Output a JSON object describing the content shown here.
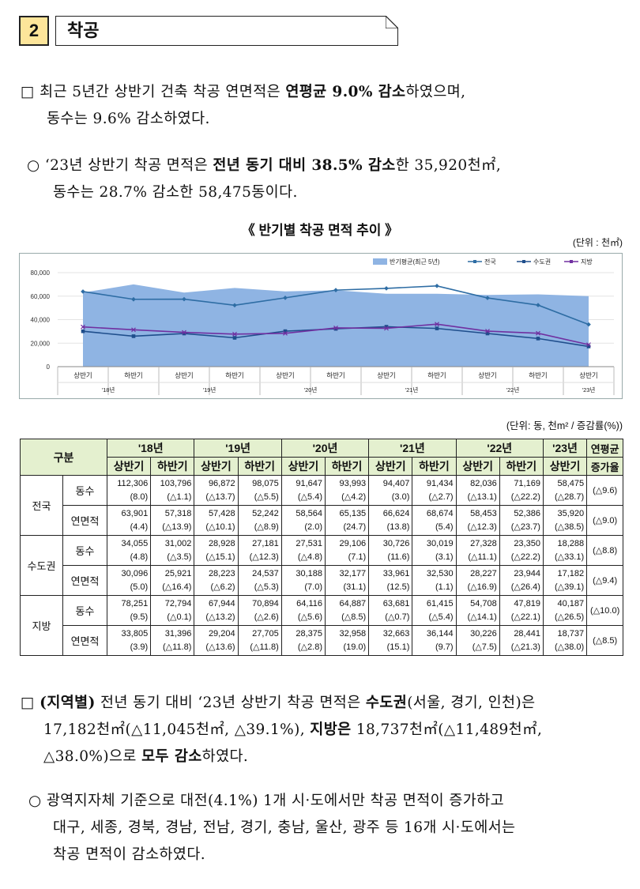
{
  "header": {
    "number": "2",
    "title": "착공"
  },
  "para1": {
    "line1": [
      "□ 최근 5년간 상반기 건축 착공 연면적은 ",
      "연평균 9.0% 감소",
      "하였으며,"
    ],
    "line2": "동수는 9.6% 감소하였다."
  },
  "para2": {
    "line1": [
      "○ ‘23년 상반기 착공 면적은 ",
      "전년 동기 대비 38.5% 감소",
      "한 35,920천㎡,"
    ],
    "line2": "동수는 28.7% 감소한 58,475동이다."
  },
  "chart_title": "《 반기별 착공 면적 추이 》",
  "chart_unit": "(단위 : 천㎡)",
  "chart_data": {
    "type": "line",
    "legend": [
      "반기평균(최근 5년)",
      "전국",
      "수도권",
      "지방"
    ],
    "legend_position": "top-right",
    "ylim": [
      0,
      80000
    ],
    "yticks": [
      "0",
      "20,000",
      "40,000",
      "60,000",
      "80,000"
    ],
    "categories": [
      "상반기",
      "하반기",
      "상반기",
      "하반기",
      "상반기",
      "하반기",
      "상반기",
      "하반기",
      "상반기",
      "하반기",
      "상반기"
    ],
    "years": [
      "'18년",
      "'19년",
      "'20년",
      "'21년",
      "'22년",
      "'23년"
    ],
    "series": [
      {
        "name": "반기평균(최근 5년)",
        "type": "area",
        "color": "#8fb4e3",
        "values": [
          63000,
          70000,
          63000,
          67000,
          64000,
          65000,
          62000,
          62000,
          61000,
          61500,
          60000
        ]
      },
      {
        "name": "전국",
        "color": "#2e6da4",
        "values": [
          63901,
          57318,
          57428,
          52242,
          58564,
          65135,
          66624,
          68674,
          58453,
          52386,
          35920
        ]
      },
      {
        "name": "수도권",
        "color": "#1f4e8c",
        "values": [
          30096,
          25921,
          28223,
          24537,
          30188,
          32177,
          33961,
          32530,
          28227,
          23944,
          17182
        ]
      },
      {
        "name": "지방",
        "color": "#7030a0",
        "values": [
          33805,
          31396,
          29204,
          27705,
          28375,
          32958,
          32663,
          36144,
          30226,
          28441,
          18737
        ]
      }
    ]
  },
  "table_unit": "(단위: 동, 천m² / 증감률(%))",
  "table": {
    "corner": "구분",
    "years": [
      "'18년",
      "'19년",
      "'20년",
      "'21년",
      "'22년",
      "'23년"
    ],
    "last_col": [
      "연평균",
      "증가율"
    ],
    "halves": [
      "상반기",
      "하반기",
      "상반기",
      "하반기",
      "상반기",
      "하반기",
      "상반기",
      "하반기",
      "상반기",
      "하반기",
      "상반기"
    ],
    "groups": [
      {
        "name": "전국",
        "rows": [
          {
            "label": "동수",
            "values": [
              "112,306",
              "103,796",
              "96,872",
              "98,075",
              "91,647",
              "93,993",
              "94,407",
              "91,434",
              "82,036",
              "71,169",
              "58,475"
            ],
            "changes": [
              "(8.0)",
              "(△1.1)",
              "(△13.7)",
              "(△5.5)",
              "(△5.4)",
              "(△4.2)",
              "(3.0)",
              "(△2.7)",
              "(△13.1)",
              "(△22.2)",
              "(△28.7)"
            ],
            "avg": "(△9.6)"
          },
          {
            "label": "연면적",
            "values": [
              "63,901",
              "57,318",
              "57,428",
              "52,242",
              "58,564",
              "65,135",
              "66,624",
              "68,674",
              "58,453",
              "52,386",
              "35,920"
            ],
            "changes": [
              "(4.4)",
              "(△13.9)",
              "(△10.1)",
              "(△8.9)",
              "(2.0)",
              "(24.7)",
              "(13.8)",
              "(5.4)",
              "(△12.3)",
              "(△23.7)",
              "(△38.5)"
            ],
            "avg": "(△9.0)"
          }
        ]
      },
      {
        "name": "수도권",
        "rows": [
          {
            "label": "동수",
            "values": [
              "34,055",
              "31,002",
              "28,928",
              "27,181",
              "27,531",
              "29,106",
              "30,726",
              "30,019",
              "27,328",
              "23,350",
              "18,288"
            ],
            "changes": [
              "(4.8)",
              "(△3.5)",
              "(△15.1)",
              "(△12.3)",
              "(△4.8)",
              "(7.1)",
              "(11.6)",
              "(3.1)",
              "(△11.1)",
              "(△22.2)",
              "(△33.1)"
            ],
            "avg": "(△8.8)"
          },
          {
            "label": "연면적",
            "values": [
              "30,096",
              "25,921",
              "28,223",
              "24,537",
              "30,188",
              "32,177",
              "33,961",
              "32,530",
              "28,227",
              "23,944",
              "17,182"
            ],
            "changes": [
              "(5.0)",
              "(△16.4)",
              "(△6.2)",
              "(△5.3)",
              "(7.0)",
              "(31.1)",
              "(12.5)",
              "(1.1)",
              "(△16.9)",
              "(△26.4)",
              "(△39.1)"
            ],
            "avg": "(△9.4)"
          }
        ]
      },
      {
        "name": "지방",
        "rows": [
          {
            "label": "동수",
            "values": [
              "78,251",
              "72,794",
              "67,944",
              "70,894",
              "64,116",
              "64,887",
              "63,681",
              "61,415",
              "54,708",
              "47,819",
              "40,187"
            ],
            "changes": [
              "(9.5)",
              "(△0.1)",
              "(△13.2)",
              "(△2.6)",
              "(△5.6)",
              "(△8.5)",
              "(△0.7)",
              "(△5.4)",
              "(△14.1)",
              "(△22.1)",
              "(△26.5)"
            ],
            "avg": "(△10.0)"
          },
          {
            "label": "연면적",
            "values": [
              "33,805",
              "31,396",
              "29,204",
              "27,705",
              "28,375",
              "32,958",
              "32,663",
              "36,144",
              "30,226",
              "28,441",
              "18,737"
            ],
            "changes": [
              "(3.9)",
              "(△11.8)",
              "(△13.6)",
              "(△11.8)",
              "(△2.8)",
              "(19.0)",
              "(15.1)",
              "(9.7)",
              "(△7.5)",
              "(△21.3)",
              "(△38.0)"
            ],
            "avg": "(△8.5)"
          }
        ]
      }
    ]
  },
  "para3": {
    "line1": [
      "□ ",
      "(지역별)",
      " 전년 동기 대비 ‘23년 상반기 착공 면적은 ",
      "수도권",
      "(서울, 경기, 인천)은"
    ],
    "line2": [
      "17,182천㎡(△11,045천㎡, △39.1%), ",
      "지방은",
      " 18,737천㎡(△11,489천㎡,"
    ],
    "line3": [
      "△38.0%)으로 ",
      "모두 감소",
      "하였다."
    ]
  },
  "para4": {
    "line1": "○ 광역지자체 기준으로 대전(4.1%) 1개 시·도에서만 착공 면적이 증가하고",
    "line2": "대구, 세종, 경북, 경남, 전남, 경기, 충남, 울산, 광주 등 16개 시·도에서는",
    "line3": "착공 면적이 감소하였다."
  }
}
